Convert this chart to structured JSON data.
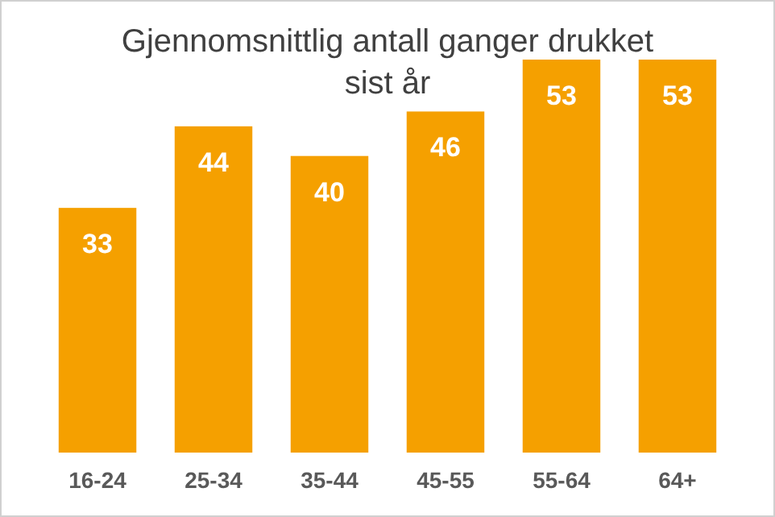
{
  "chart_data": {
    "type": "bar",
    "title": "Gjennomsnittlig antall ganger drukket sist år",
    "categories": [
      "16-24",
      "25-34",
      "35-44",
      "45-55",
      "55-64",
      "64+"
    ],
    "values": [
      33,
      44,
      40,
      46,
      53,
      53
    ],
    "color": "#f5a000",
    "data_labels": true
  }
}
